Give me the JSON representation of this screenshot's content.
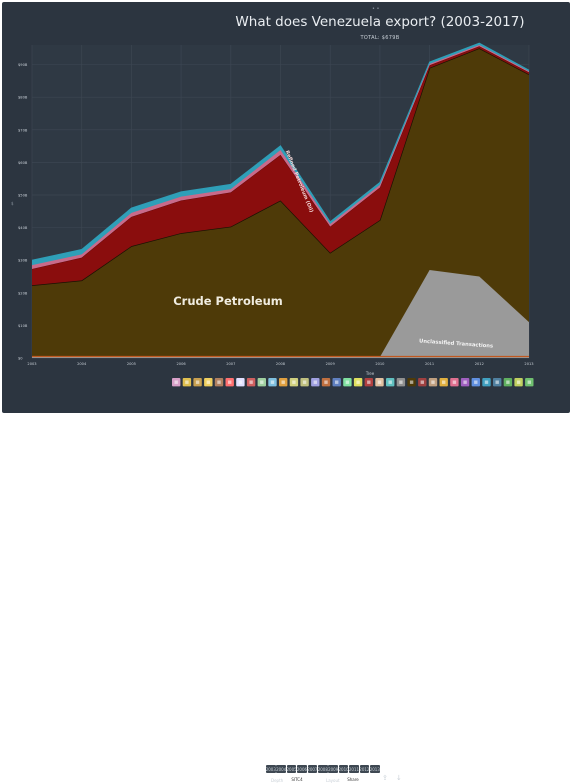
{
  "header": {
    "title": "What does Venezuela export? (2003-2017)",
    "subtitle": "TOTAL: $679B",
    "top_marker": "• •"
  },
  "chart_data": {
    "type": "area",
    "stacked": true,
    "x": [
      2003,
      2004,
      2005,
      2006,
      2007,
      2008,
      2009,
      2010,
      2011,
      2012,
      2013
    ],
    "xticks": [
      "2003",
      "2004",
      "2005",
      "2006",
      "2007",
      "2008",
      "2009",
      "2010",
      "2011",
      "2012",
      "2013"
    ],
    "yticks": [
      "$0",
      "$10B",
      "$20B",
      "$30B",
      "$40B",
      "$50B",
      "$60B",
      "$70B",
      "$80B",
      "$90B"
    ],
    "ylim": [
      0,
      96
    ],
    "series": [
      {
        "name": "Unclassified Transactions",
        "color": "#9a9a9a",
        "values": [
          0.3,
          0.3,
          0.3,
          0.3,
          0.3,
          0.3,
          0.3,
          0.3,
          27,
          25,
          11
        ]
      },
      {
        "name": "Crude Petroleum",
        "color": "#4e3a08",
        "values": [
          22,
          23.5,
          34,
          38,
          40,
          48,
          32,
          42,
          62,
          70,
          76
        ]
      },
      {
        "name": "Refined Petroleum (Oil)",
        "color": "#8a0d0d",
        "values": [
          5,
          7,
          9,
          10,
          10.5,
          14,
          8,
          10,
          0.8,
          0.6,
          0.6
        ]
      },
      {
        "name": "",
        "color": "#c96a8a",
        "values": [
          1.2,
          1.0,
          1.2,
          1.2,
          1.0,
          1.5,
          0.8,
          0.8,
          0.4,
          0.4,
          0.3
        ]
      },
      {
        "name": "",
        "color": "#2f9fb8",
        "values": [
          1.5,
          1.5,
          1.5,
          1.5,
          1.5,
          1.3,
          0.7,
          0.8,
          0.6,
          0.6,
          0.4
        ]
      }
    ],
    "labels": {
      "crude": "Crude Petroleum",
      "refined": "Refined Petroleum (Oil)",
      "unclassified": "Unclassified Transactions"
    },
    "yaxis_side_label": "$"
  },
  "controls": {
    "toolbar_label": "Tree",
    "years": [
      "2003",
      "2004",
      "2005",
      "2006",
      "2007",
      "2008",
      "2009",
      "2010",
      "2011",
      "2012",
      "2013"
    ],
    "depth_label": "Depth",
    "depth_value": "SITC4",
    "layout_label": "Layout",
    "layout_value": "Share"
  },
  "category_icons": [
    {
      "icon": "grid-icon",
      "color": "#d8a0c8"
    },
    {
      "icon": "animal-icon",
      "color": "#e0c050"
    },
    {
      "icon": "leaf-icon",
      "color": "#c8a050"
    },
    {
      "icon": "food-icon",
      "color": "#f0d060"
    },
    {
      "icon": "mineral-icon",
      "color": "#b08060"
    },
    {
      "icon": "chemical-icon",
      "color": "#ff7070"
    },
    {
      "icon": "plastic-icon",
      "color": "#e0e0ff"
    },
    {
      "icon": "hide-icon",
      "color": "#d06060"
    },
    {
      "icon": "wood-icon",
      "color": "#a0d0a0"
    },
    {
      "icon": "paper-icon",
      "color": "#80c0e0"
    },
    {
      "icon": "textile-icon",
      "color": "#e0a040"
    },
    {
      "icon": "footwear-icon",
      "color": "#d0d080"
    },
    {
      "icon": "stone-icon",
      "color": "#c0c080"
    },
    {
      "icon": "gem-icon",
      "color": "#a0a0e0"
    },
    {
      "icon": "metal-icon",
      "color": "#c07040"
    },
    {
      "icon": "machine-icon",
      "color": "#6080c0"
    },
    {
      "icon": "vehicle-icon",
      "color": "#80e0a0"
    },
    {
      "icon": "instrument-icon",
      "color": "#e0e060"
    },
    {
      "icon": "weapon-icon",
      "color": "#b04040"
    },
    {
      "icon": "misc-icon",
      "color": "#e0c0a0"
    },
    {
      "icon": "art-icon",
      "color": "#60c0c0"
    },
    {
      "icon": "unknown-icon",
      "color": "#909090"
    },
    {
      "icon": "oil-icon",
      "color": "#4e3a08"
    },
    {
      "icon": "question-icon",
      "color": "#a04040"
    },
    {
      "icon": "box-icon",
      "color": "#c0a080"
    },
    {
      "icon": "star-icon",
      "color": "#e0b040"
    },
    {
      "icon": "heart-icon",
      "color": "#e07090"
    },
    {
      "icon": "flag-icon",
      "color": "#a060c0"
    },
    {
      "icon": "cup-icon",
      "color": "#6090e0"
    },
    {
      "icon": "ship-icon",
      "color": "#40a0c0"
    },
    {
      "icon": "anchor-icon",
      "color": "#5080a0"
    },
    {
      "icon": "tree-icon",
      "color": "#60b060"
    },
    {
      "icon": "wheat-icon",
      "color": "#c0d060"
    },
    {
      "icon": "globe-icon",
      "color": "#70c070"
    }
  ]
}
